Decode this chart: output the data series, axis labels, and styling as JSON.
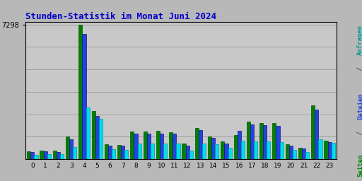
{
  "title": "Stunden-Statistik im Monat Juni 2024",
  "max_val": 7298,
  "ytick_label": "7298",
  "background_color": "#b8b8b8",
  "plot_bg": "#c8c8c8",
  "title_color": "#0000cc",
  "bar_width": 0.28,
  "colors": {
    "green": "#008000",
    "blue": "#2244dd",
    "cyan": "#00ddee"
  },
  "grid_color": "#aaaaaa",
  "seiten": [
    430,
    480,
    460,
    1250,
    7298,
    2600,
    820,
    780,
    1500,
    1500,
    1530,
    1460,
    850,
    1680,
    1250,
    950,
    1300,
    2050,
    1980,
    1950,
    810,
    640,
    2900,
    1000
  ],
  "dateien": [
    380,
    440,
    410,
    1100,
    6800,
    2350,
    740,
    720,
    1400,
    1380,
    1390,
    1380,
    750,
    1580,
    1150,
    870,
    1550,
    1880,
    1840,
    1800,
    740,
    580,
    2700,
    940
  ],
  "anfragen": [
    250,
    290,
    280,
    680,
    2800,
    2200,
    560,
    490,
    870,
    860,
    870,
    850,
    470,
    860,
    830,
    640,
    1000,
    980,
    960,
    930,
    520,
    410,
    1090,
    880
  ],
  "label_parts": [
    [
      "Seiten",
      "#008000"
    ],
    [
      " / ",
      "#444444"
    ],
    [
      "Dateien",
      "#2244dd"
    ],
    [
      " / ",
      "#444444"
    ],
    [
      "Anfragen",
      "#009999"
    ]
  ]
}
